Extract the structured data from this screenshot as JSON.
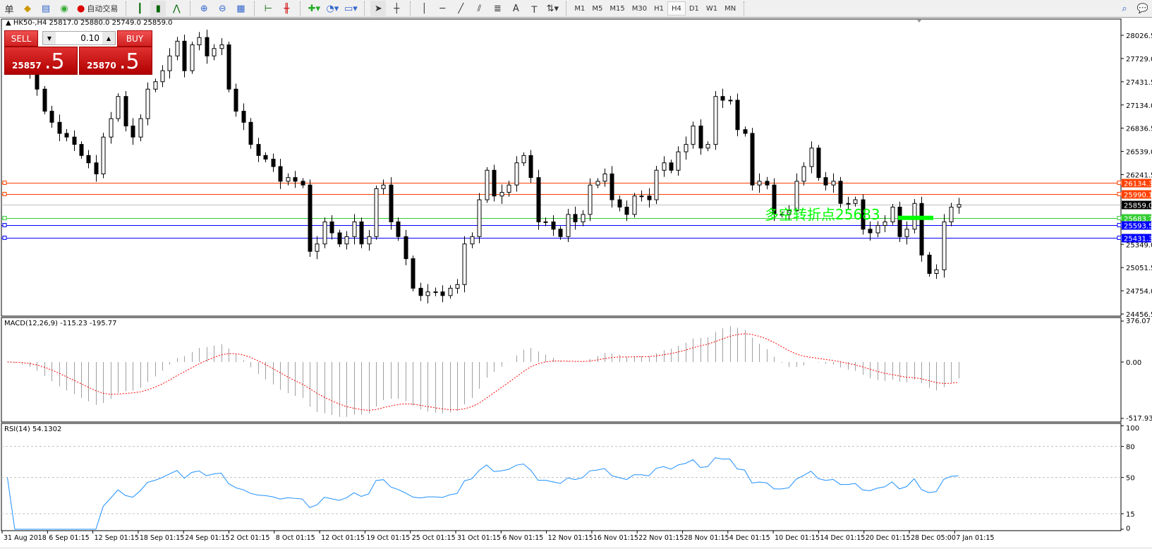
{
  "toolbar": {
    "partial_label": "单",
    "auto_trade_label": "自动交易",
    "timeframes": [
      "M1",
      "M5",
      "M15",
      "M30",
      "H1",
      "H4",
      "D1",
      "W1",
      "MN"
    ],
    "selected_timeframe": "H4",
    "icons": [
      "orders-icon",
      "market-watch-icon",
      "navigator-icon",
      "signal-icon",
      "auto-trading-icon",
      "bar-chart-icon",
      "candlestick-icon",
      "line-chart-icon",
      "zoom-in-icon",
      "zoom-out-icon",
      "tile-windows-icon",
      "chart-shift-icon",
      "autoscroll-icon",
      "new-order-icon",
      "periods-icon",
      "templates-icon",
      "cursor-icon",
      "crosshair-icon",
      "vertical-line-icon",
      "horizontal-line-icon",
      "trendline-icon",
      "equidistant-channel-icon",
      "fibonacci-icon",
      "text-icon",
      "text-label-icon",
      "arrows-icon",
      "search-icon",
      "chat-icon"
    ]
  },
  "chart": {
    "symbol_header": "HK50-,H4  25817.0 25880.0 25749.0 25859.0",
    "trade_panel": {
      "sell_label": "SELL",
      "buy_label": "BUY",
      "lot": "0.10",
      "sell_price_main": "25857",
      "sell_price_frac": ".5",
      "buy_price_main": "25870",
      "buy_price_frac": ".5"
    },
    "annotation_text": "多空转折点25683",
    "annotation_color": "#00ff00",
    "price_axis_ticks": [
      "28026.5",
      "27729.0",
      "27431.5",
      "27134.0",
      "26836.5",
      "26539.0",
      "26241.5",
      "25349.0",
      "25051.5",
      "24754.0",
      "24456.5"
    ],
    "levels": [
      {
        "value": "26134.3",
        "color": "#ff4000"
      },
      {
        "value": "25990.1",
        "color": "#ff4000"
      },
      {
        "value": "25859.0",
        "color": "#c0c0c0",
        "label_bg": "#000000"
      },
      {
        "value": "25683.7",
        "color": "#32cd32"
      },
      {
        "value": "25593.5",
        "color": "#0000ff"
      },
      {
        "value": "25431.3",
        "color": "#0000ff"
      }
    ],
    "time_labels": [
      "31 Aug 2018",
      "6 Sep 01:15",
      "12 Sep 01:15",
      "18 Sep 01:15",
      "24 Sep 01:15",
      "2 Oct 01:15",
      "8 Oct 01:15",
      "12 Oct 01:15",
      "19 Oct 01:15",
      "25 Oct 01:15",
      "31 Oct 01:15",
      "6 Nov 01:15",
      "12 Nov 01:15",
      "16 Nov 01:15",
      "22 Nov 01:15",
      "28 Nov 01:15",
      "4 Dec 01:15",
      "10 Dec 01:15",
      "14 Dec 01:15",
      "20 Dec 01:15",
      "28 Dec 05:00",
      "7 Jan 01:15"
    ]
  },
  "macd": {
    "label": "MACD(12,26,9) -115.23 -195.77",
    "axis_ticks": [
      "376.07",
      "0.00",
      "-517.93"
    ],
    "histogram_color": "#a0a0a0",
    "signal_color": "#ff0000"
  },
  "rsi": {
    "label": "RSI(14) 54.1302",
    "axis_ticks": [
      "100",
      "80",
      "50",
      "15",
      "0"
    ],
    "line_color": "#1e90ff"
  },
  "chart_data": {
    "type": "candlestick",
    "symbol": "HK50-",
    "timeframe": "H4",
    "price_range": [
      24456.5,
      28026.5
    ],
    "first_open": 27950,
    "closes": [
      27904,
      27809,
      27715,
      27526,
      27337,
      27054,
      26912,
      26770,
      26723,
      26629,
      26487,
      26393,
      26251,
      26723,
      26959,
      27243,
      26865,
      26723,
      26959,
      27337,
      27432,
      27573,
      27762,
      27951,
      27573,
      27904,
      27998,
      27762,
      27857,
      27904,
      27337,
      27054,
      26912,
      26629,
      26487,
      26440,
      26345,
      26157,
      26204,
      26157,
      26109,
      25259,
      25354,
      25637,
      25496,
      25354,
      25448,
      25637,
      25354,
      25448,
      26062,
      26109,
      25637,
      25448,
      25165,
      24787,
      24693,
      24740,
      24740,
      24693,
      24787,
      24834,
      25354,
      25448,
      25920,
      26298,
      25968,
      26015,
      26109,
      26393,
      26487,
      26204,
      25637,
      25637,
      25543,
      25448,
      25732,
      25637,
      25732,
      26109,
      26157,
      26251,
      25920,
      25826,
      25732,
      25968,
      25968,
      25920,
      26298,
      26393,
      26298,
      26534,
      26629,
      26865,
      26582,
      26629,
      27243,
      27195,
      27195,
      26818,
      26770,
      26109,
      26157,
      26109,
      25732,
      25732,
      25779,
      26157,
      26345,
      26582,
      26204,
      26109,
      26157,
      25873,
      25873,
      25920,
      25543,
      25496,
      25590,
      25637,
      25826,
      25448,
      25543,
      25873,
      25212,
      24976,
      25023,
      25637,
      25826,
      25859
    ]
  }
}
